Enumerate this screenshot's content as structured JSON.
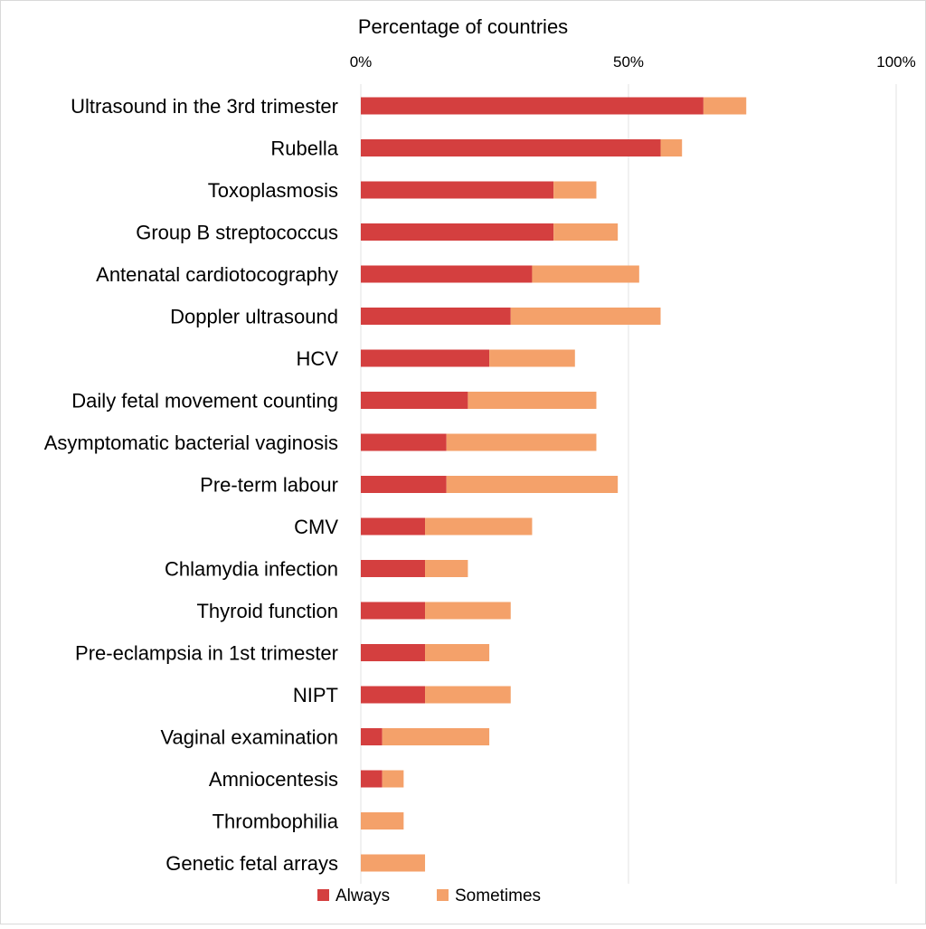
{
  "chart_data": {
    "type": "bar",
    "orientation": "horizontal",
    "stacked": true,
    "title": "",
    "xlabel": "Percentage of countries",
    "ylabel": "",
    "xlim": [
      0,
      100
    ],
    "x_ticks": [
      "0%",
      "50%",
      "100%"
    ],
    "grid": true,
    "legend_position": "bottom",
    "categories": [
      "Ultrasound in the 3rd trimester",
      "Rubella",
      "Toxoplasmosis",
      "Group B streptococcus",
      "Antenatal cardiotocography",
      "Doppler ultrasound",
      "HCV",
      "Daily fetal movement counting",
      "Asymptomatic bacterial vaginosis",
      "Pre-term labour",
      "CMV",
      "Chlamydia infection",
      "Thyroid function",
      "Pre-eclampsia in 1st trimester",
      "NIPT",
      "Vaginal examination",
      "Amniocentesis",
      "Thrombophilia",
      "Genetic fetal arrays"
    ],
    "series": [
      {
        "name": "Always",
        "color": "#d43f3f",
        "values": [
          64,
          56,
          36,
          36,
          32,
          28,
          24,
          20,
          16,
          16,
          12,
          12,
          12,
          12,
          12,
          4,
          4,
          0,
          0
        ]
      },
      {
        "name": "Sometimes",
        "color": "#f4a16a",
        "values": [
          8,
          4,
          8,
          12,
          20,
          28,
          16,
          24,
          28,
          32,
          20,
          8,
          16,
          12,
          16,
          20,
          4,
          8,
          12
        ]
      }
    ]
  }
}
